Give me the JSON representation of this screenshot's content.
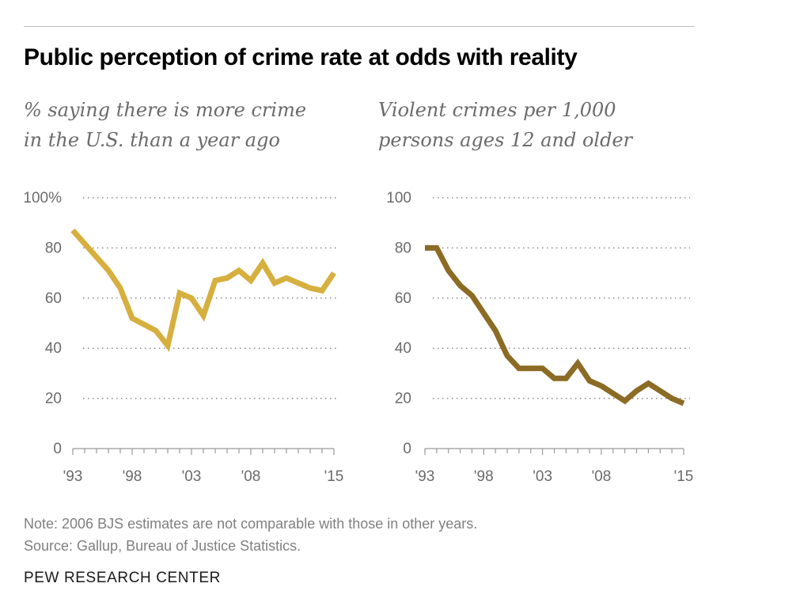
{
  "title": "Public perception of crime rate at odds with reality",
  "charts": [
    {
      "subtitle_lines": [
        "% saying there is more crime",
        "in the U.S. than a year ago"
      ],
      "color": "#D6AF3E"
    },
    {
      "subtitle_lines": [
        "Violent crimes per 1,000",
        "persons ages 12 and older"
      ],
      "color": "#8C6B24"
    }
  ],
  "chart_data": [
    {
      "type": "line",
      "title": "% saying there is more crime in the U.S. than a year ago",
      "xlabel": "",
      "ylabel": "",
      "xlim": [
        1993,
        2015
      ],
      "ylim": [
        0,
        100
      ],
      "y_ticks": [
        {
          "value": 0,
          "label": "0"
        },
        {
          "value": 20,
          "label": "20"
        },
        {
          "value": 40,
          "label": "40"
        },
        {
          "value": 60,
          "label": "60"
        },
        {
          "value": 80,
          "label": "80"
        },
        {
          "value": 100,
          "label": "100%"
        }
      ],
      "x_ticks": [
        {
          "value": 1993,
          "label": "'93"
        },
        {
          "value": 1998,
          "label": "'98"
        },
        {
          "value": 2003,
          "label": "'03"
        },
        {
          "value": 2008,
          "label": "'08"
        },
        {
          "value": 2015,
          "label": "'15"
        }
      ],
      "grid": true,
      "series": [
        {
          "color": "#D6AF3E",
          "points": [
            {
              "x": 1993,
              "y": 87
            },
            {
              "x": 1996,
              "y": 71
            },
            {
              "x": 1997,
              "y": 64
            },
            {
              "x": 1998,
              "y": 52
            },
            {
              "x": 2000,
              "y": 47
            },
            {
              "x": 2001,
              "y": 41
            },
            {
              "x": 2002,
              "y": 62
            },
            {
              "x": 2003,
              "y": 60
            },
            {
              "x": 2004,
              "y": 53
            },
            {
              "x": 2005,
              "y": 67
            },
            {
              "x": 2006,
              "y": 68
            },
            {
              "x": 2007,
              "y": 71
            },
            {
              "x": 2008,
              "y": 67
            },
            {
              "x": 2009,
              "y": 74
            },
            {
              "x": 2010,
              "y": 66
            },
            {
              "x": 2011,
              "y": 68
            },
            {
              "x": 2013,
              "y": 64
            },
            {
              "x": 2014,
              "y": 63
            },
            {
              "x": 2015,
              "y": 70
            }
          ]
        }
      ]
    },
    {
      "type": "line",
      "title": "Violent crimes per 1,000 persons ages 12 and older",
      "xlabel": "",
      "ylabel": "",
      "xlim": [
        1993,
        2015
      ],
      "ylim": [
        0,
        100
      ],
      "y_ticks": [
        {
          "value": 0,
          "label": "0"
        },
        {
          "value": 20,
          "label": "20"
        },
        {
          "value": 40,
          "label": "40"
        },
        {
          "value": 60,
          "label": "60"
        },
        {
          "value": 80,
          "label": "80"
        },
        {
          "value": 100,
          "label": "100"
        }
      ],
      "x_ticks": [
        {
          "value": 1993,
          "label": "'93"
        },
        {
          "value": 1998,
          "label": "'98"
        },
        {
          "value": 2003,
          "label": "'03"
        },
        {
          "value": 2008,
          "label": "'08"
        },
        {
          "value": 2015,
          "label": "'15"
        }
      ],
      "grid": true,
      "series": [
        {
          "color": "#8C6B24",
          "points": [
            {
              "x": 1993,
              "y": 80
            },
            {
              "x": 1994,
              "y": 80
            },
            {
              "x": 1995,
              "y": 71
            },
            {
              "x": 1996,
              "y": 65
            },
            {
              "x": 1997,
              "y": 61
            },
            {
              "x": 1998,
              "y": 54
            },
            {
              "x": 1999,
              "y": 47
            },
            {
              "x": 2000,
              "y": 37
            },
            {
              "x": 2001,
              "y": 32
            },
            {
              "x": 2002,
              "y": 32
            },
            {
              "x": 2003,
              "y": 32
            },
            {
              "x": 2004,
              "y": 28
            },
            {
              "x": 2005,
              "y": 28
            },
            {
              "x": 2006,
              "y": 34
            },
            {
              "x": 2007,
              "y": 27
            },
            {
              "x": 2008,
              "y": 25
            },
            {
              "x": 2009,
              "y": 22
            },
            {
              "x": 2010,
              "y": 19
            },
            {
              "x": 2011,
              "y": 23
            },
            {
              "x": 2012,
              "y": 26
            },
            {
              "x": 2013,
              "y": 23
            },
            {
              "x": 2014,
              "y": 20
            },
            {
              "x": 2015,
              "y": 18
            }
          ]
        }
      ]
    }
  ],
  "note": "Note: 2006 BJS estimates are not comparable with those in other years.",
  "source": "Source: Gallup, Bureau of Justice Statistics.",
  "brand": "PEW RESEARCH CENTER"
}
